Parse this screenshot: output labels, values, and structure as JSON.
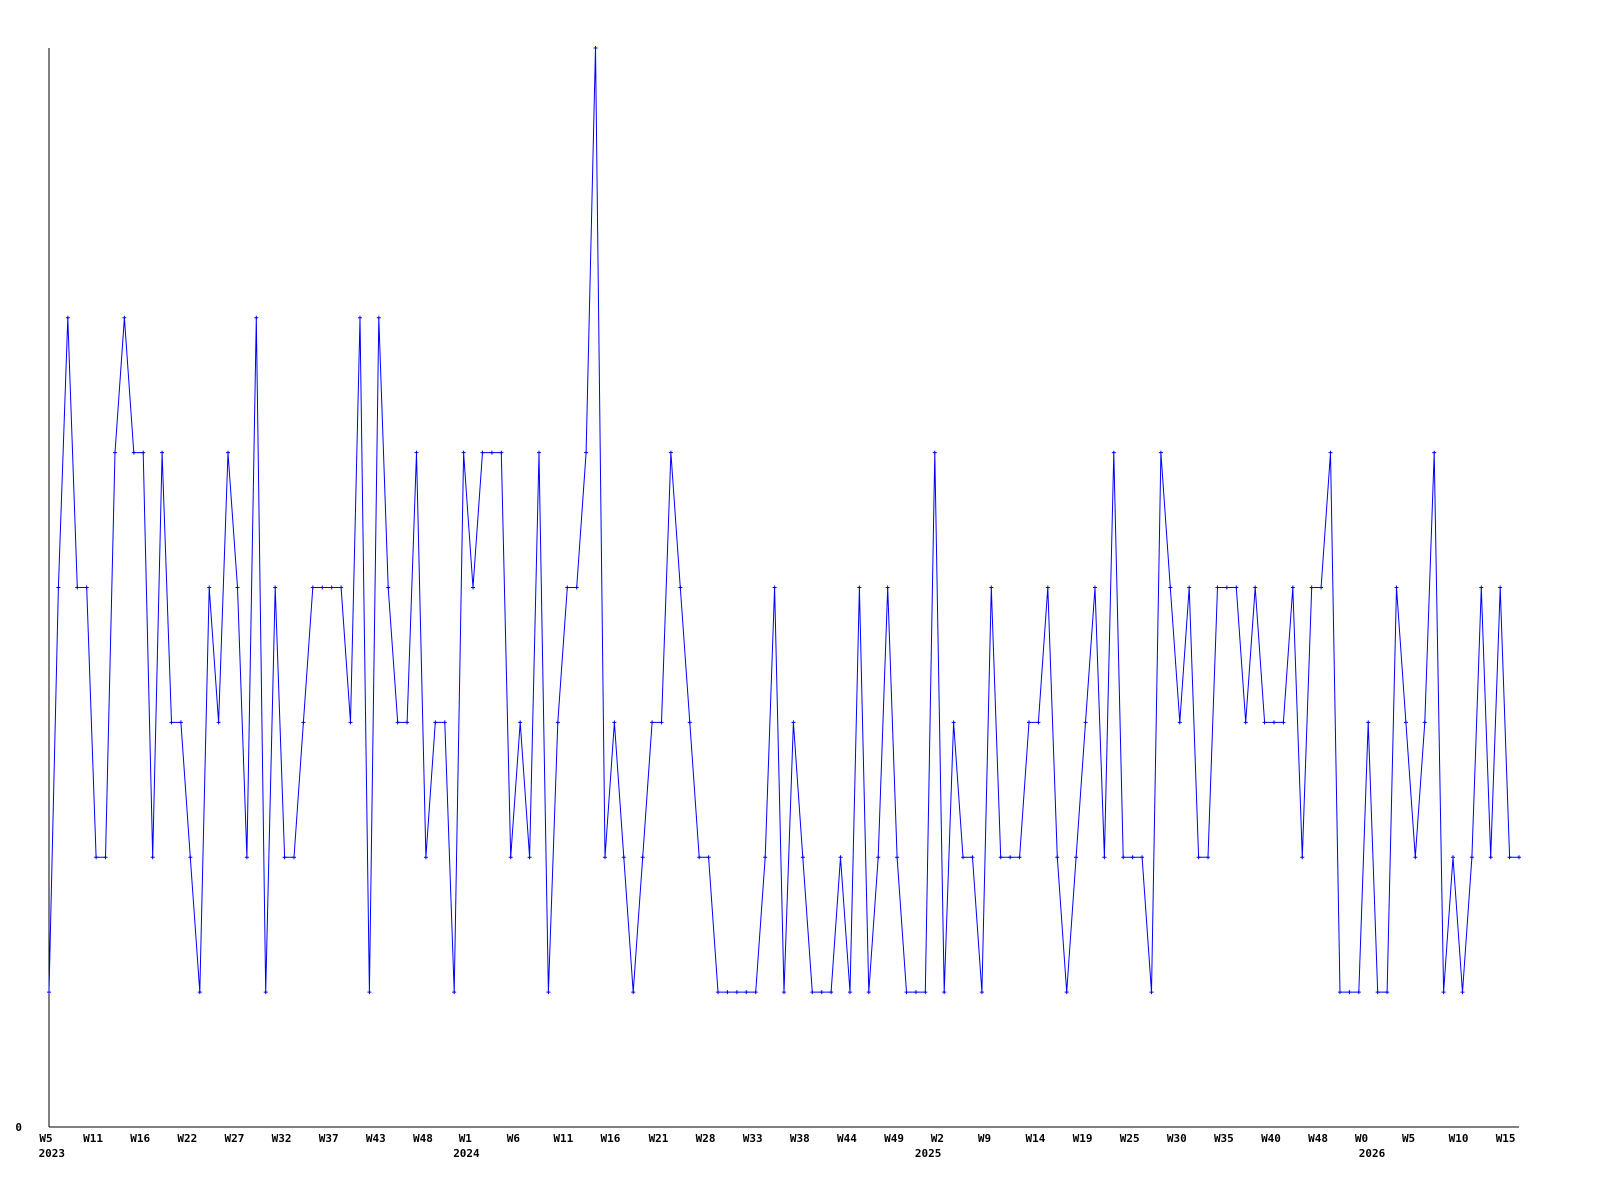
{
  "chart_data": {
    "type": "line",
    "title": "",
    "xlabel": "",
    "ylabel": "",
    "ylim": [
      0,
      8
    ],
    "y_tick_labels": [
      "0"
    ],
    "grid": false,
    "legend": "none",
    "line_color": "#0000ff",
    "axis_color": "#000000",
    "markers": true,
    "series": [
      {
        "values": [
          1,
          4,
          6,
          4,
          4,
          2,
          2,
          5,
          6,
          5,
          5,
          2,
          5,
          3,
          3,
          2,
          1,
          4,
          3,
          5,
          4,
          2,
          6,
          1,
          4,
          2,
          2,
          3,
          4,
          4,
          4,
          4,
          3,
          6,
          1,
          6,
          4,
          3,
          3,
          5,
          2,
          3,
          3,
          1,
          5,
          4,
          5,
          5,
          5,
          2,
          3,
          2,
          5,
          1,
          3,
          4,
          4,
          5,
          8,
          2,
          3,
          2,
          1,
          2,
          3,
          3,
          5,
          4,
          3,
          2,
          2,
          1,
          1,
          1,
          1,
          1,
          2,
          4,
          1,
          3,
          2,
          1,
          1,
          1,
          2,
          1,
          4,
          1,
          2,
          4,
          2,
          1,
          1,
          1,
          5,
          1,
          3,
          2,
          2,
          1,
          4,
          2,
          2,
          2,
          3,
          3,
          4,
          2,
          1,
          2,
          3,
          4,
          2,
          5,
          2,
          2,
          2,
          1,
          5,
          4,
          3,
          4,
          2,
          2,
          4,
          4,
          4,
          3,
          4,
          3,
          3,
          3,
          4,
          2,
          4,
          4,
          5,
          1,
          1,
          1,
          3,
          1,
          1,
          4,
          3,
          2,
          3,
          5,
          1,
          2,
          1,
          2,
          4,
          2,
          4,
          2,
          2
        ]
      }
    ],
    "x_ticks": [
      {
        "label": "W5",
        "at": 0
      },
      {
        "label": "W11",
        "at": 5
      },
      {
        "label": "W16",
        "at": 10
      },
      {
        "label": "W22",
        "at": 15
      },
      {
        "label": "W27",
        "at": 20
      },
      {
        "label": "W32",
        "at": 25
      },
      {
        "label": "W37",
        "at": 30
      },
      {
        "label": "W43",
        "at": 35
      },
      {
        "label": "W48",
        "at": 40
      },
      {
        "label": "W1",
        "at": 44.5
      },
      {
        "label": "W6",
        "at": 49.6
      },
      {
        "label": "W11",
        "at": 54.9
      },
      {
        "label": "W16",
        "at": 59.9
      },
      {
        "label": "W21",
        "at": 65
      },
      {
        "label": "W28",
        "at": 70
      },
      {
        "label": "W33",
        "at": 75
      },
      {
        "label": "W38",
        "at": 80
      },
      {
        "label": "W44",
        "at": 85
      },
      {
        "label": "W49",
        "at": 90
      },
      {
        "label": "W2",
        "at": 94.6
      },
      {
        "label": "W9",
        "at": 99.6
      },
      {
        "label": "W14",
        "at": 105
      },
      {
        "label": "W19",
        "at": 110
      },
      {
        "label": "W25",
        "at": 115
      },
      {
        "label": "W30",
        "at": 120
      },
      {
        "label": "W35",
        "at": 125
      },
      {
        "label": "W40",
        "at": 130
      },
      {
        "label": "W48",
        "at": 135
      },
      {
        "label": "W0",
        "at": 139.6
      },
      {
        "label": "W5",
        "at": 144.6
      },
      {
        "label": "W10",
        "at": 149.9
      },
      {
        "label": "W15",
        "at": 154.9
      }
    ],
    "year_labels": [
      {
        "label": "2023",
        "at": 0.3
      },
      {
        "label": "2024",
        "at": 44.3
      },
      {
        "label": "2025",
        "at": 93.3
      },
      {
        "label": "2026",
        "at": 140.4
      }
    ]
  }
}
